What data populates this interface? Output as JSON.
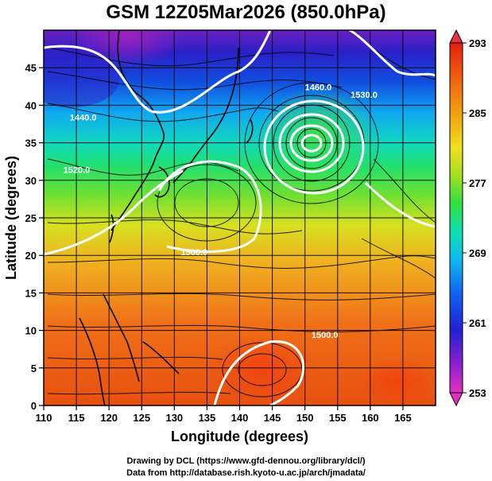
{
  "title": "GSM 12Z05Mar2026 (850.0hPa)",
  "x_axis": {
    "label": "Longitude (degrees)",
    "ticks": [
      "110",
      "115",
      "120",
      "125",
      "130",
      "135",
      "140",
      "145",
      "150",
      "155",
      "160",
      "165"
    ]
  },
  "y_axis": {
    "label": "Latitude  (degrees)",
    "ticks": [
      "0",
      "5",
      "10",
      "15",
      "20",
      "25",
      "30",
      "35",
      "40",
      "45"
    ]
  },
  "colorbar": {
    "ticks": [
      "253",
      "261",
      "269",
      "277",
      "285",
      "293"
    ],
    "colors": [
      "#e040c0",
      "#8a1fd0",
      "#2020d0",
      "#1060f0",
      "#10b0f0",
      "#10e0c0",
      "#30e040",
      "#a8e020",
      "#f0e020",
      "#f0a010",
      "#f06010",
      "#e82010"
    ]
  },
  "contour_labels": [
    {
      "text": "1460.0",
      "lon": 150,
      "lat": 42
    },
    {
      "text": "1520.0",
      "lon": 113,
      "lat": 31
    },
    {
      "text": "1500.0",
      "lon": 131,
      "lat": 20
    },
    {
      "text": "1440.0",
      "lon": 114,
      "lat": 38
    },
    {
      "text": "1500.0",
      "lon": 151,
      "lat": 9
    },
    {
      "text": "1530.0",
      "lon": 157,
      "lat": 41
    }
  ],
  "credits": {
    "line1": "Drawing by DCL (https://www.gfd-dennou.org/library/dcl/)",
    "line2": "Data from http://database.rish.kyoto-u.ac.jp/arch/jmadata/"
  }
}
